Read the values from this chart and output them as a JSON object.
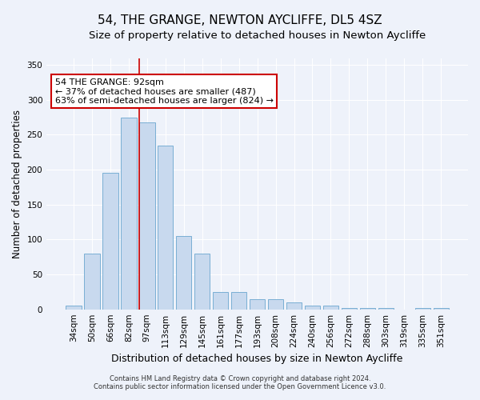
{
  "title": "54, THE GRANGE, NEWTON AYCLIFFE, DL5 4SZ",
  "subtitle": "Size of property relative to detached houses in Newton Aycliffe",
  "xlabel": "Distribution of detached houses by size in Newton Aycliffe",
  "ylabel": "Number of detached properties",
  "categories": [
    "34sqm",
    "50sqm",
    "66sqm",
    "82sqm",
    "97sqm",
    "113sqm",
    "129sqm",
    "145sqm",
    "161sqm",
    "177sqm",
    "193sqm",
    "208sqm",
    "224sqm",
    "240sqm",
    "256sqm",
    "272sqm",
    "288sqm",
    "303sqm",
    "319sqm",
    "335sqm",
    "351sqm"
  ],
  "values": [
    5,
    80,
    195,
    275,
    268,
    235,
    105,
    80,
    25,
    25,
    15,
    15,
    10,
    5,
    5,
    2,
    2,
    2,
    0,
    2,
    2
  ],
  "bar_color": "#c8d9ee",
  "bar_edge_color": "#7aafd4",
  "highlight_line_color": "#cc0000",
  "annotation_text": "54 THE GRANGE: 92sqm\n← 37% of detached houses are smaller (487)\n63% of semi-detached houses are larger (824) →",
  "annotation_box_color": "#ffffff",
  "annotation_box_edge_color": "#cc0000",
  "footnote1": "Contains HM Land Registry data © Crown copyright and database right 2024.",
  "footnote2": "Contains public sector information licensed under the Open Government Licence v3.0.",
  "ylim": [
    0,
    360
  ],
  "yticks": [
    0,
    50,
    100,
    150,
    200,
    250,
    300,
    350
  ],
  "bg_color": "#eef2fa",
  "title_fontsize": 11,
  "subtitle_fontsize": 9.5,
  "xlabel_fontsize": 9,
  "ylabel_fontsize": 8.5,
  "tick_fontsize": 7.5,
  "annotation_fontsize": 8,
  "footnote_fontsize": 6
}
